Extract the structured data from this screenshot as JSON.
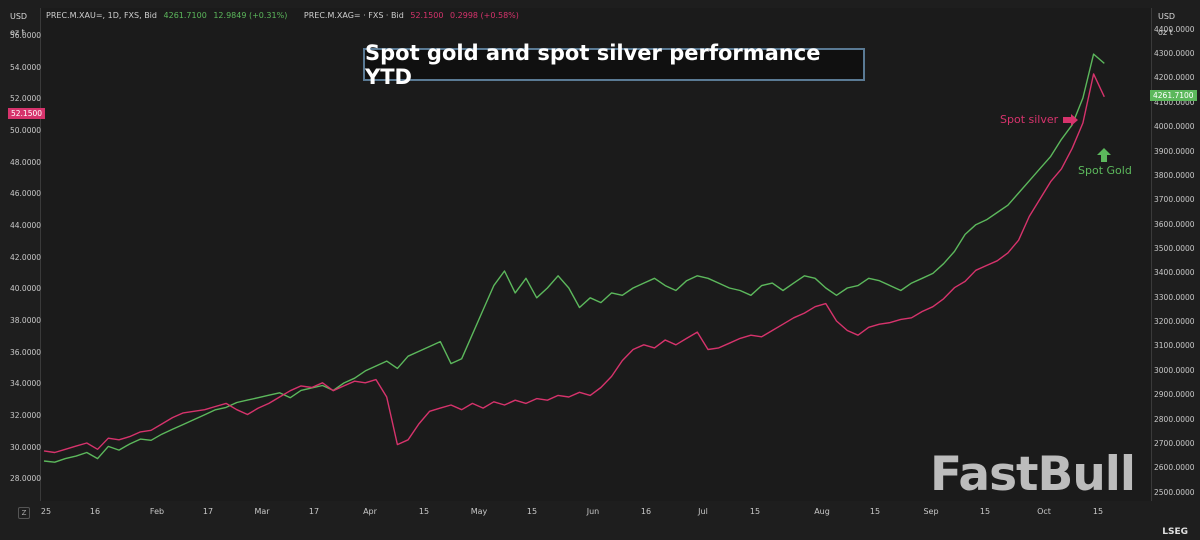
{
  "colors": {
    "gold": "#5cb85c",
    "silver": "#d6336c",
    "title_border": "#5a7a94"
  },
  "info": {
    "gold_ric": "PREC.M.XAU=, 1D, FXS, Bid",
    "gold_value": "4261.7100",
    "gold_change": "12.9849 (+0.31%)",
    "silver_ric": "PREC.M.XAG= · FXS · Bid",
    "silver_value": "52.1500",
    "silver_change": "0.2998 (+0.58%)"
  },
  "left_axis": {
    "unit": "USD",
    "sub": "oz t"
  },
  "right_axis": {
    "unit": "USD",
    "sub": "oz t"
  },
  "badges": {
    "left": "52.1500",
    "right": "4261.7100"
  },
  "annotations": {
    "silver": "Spot silver",
    "gold": "Spot Gold"
  },
  "watermark": "FastBull",
  "source": "LSEG",
  "zoom_icon": "Z",
  "chart_data": {
    "type": "line",
    "title": "Spot gold and spot silver performance YTD",
    "x_ticks": [
      "25",
      "16",
      "Feb",
      "17",
      "Mar",
      "17",
      "Apr",
      "15",
      "May",
      "15",
      "Jun",
      "16",
      "Jul",
      "15",
      "Aug",
      "15",
      "Sep",
      "15",
      "Oct",
      "15"
    ],
    "left_axis_ticks": [
      "56.0000",
      "54.0000",
      "52.0000",
      "50.0000",
      "48.0000",
      "46.0000",
      "44.0000",
      "42.0000",
      "40.0000",
      "38.0000",
      "36.0000",
      "34.0000",
      "32.0000",
      "30.0000",
      "28.0000"
    ],
    "right_axis_ticks": [
      "4400.0000",
      "4300.0000",
      "4200.0000",
      "4100.0000",
      "4000.0000",
      "3900.0000",
      "3800.0000",
      "3700.0000",
      "3600.0000",
      "3500.0000",
      "3400.0000",
      "3300.0000",
      "3200.0000",
      "3100.0000",
      "3000.0000",
      "2900.0000",
      "2800.0000",
      "2700.0000",
      "2600.0000",
      "2500.0000"
    ],
    "left_ylim": [
      26.7,
      57.0
    ],
    "right_ylim": [
      2470,
      4440
    ],
    "x_range": [
      0,
      100
    ],
    "series": [
      {
        "name": "PREC.M.XAU=",
        "axis": "right",
        "x": [
          0,
          1,
          2,
          3,
          4,
          5,
          6,
          7,
          8,
          9,
          10,
          11,
          12,
          13,
          14,
          15,
          16,
          17,
          18,
          19,
          20,
          21,
          22,
          23,
          24,
          25,
          26,
          27,
          28,
          29,
          30,
          31,
          32,
          33,
          34,
          35,
          36,
          37,
          38,
          39,
          40,
          41,
          42,
          43,
          44,
          45,
          46,
          47,
          48,
          49,
          50,
          51,
          52,
          53,
          54,
          55,
          56,
          57,
          58,
          59,
          60,
          61,
          62,
          63,
          64,
          65,
          66,
          67,
          68,
          69,
          70,
          71,
          72,
          73,
          74,
          75,
          76,
          77,
          78,
          79,
          80,
          81,
          82,
          83,
          84,
          85,
          86,
          87,
          88,
          89,
          90,
          91,
          92,
          93,
          94,
          95,
          96,
          97,
          98,
          99
        ],
        "values": [
          2630,
          2625,
          2640,
          2650,
          2665,
          2640,
          2690,
          2675,
          2700,
          2720,
          2715,
          2740,
          2760,
          2780,
          2800,
          2820,
          2840,
          2850,
          2870,
          2880,
          2890,
          2900,
          2910,
          2890,
          2920,
          2930,
          2940,
          2920,
          2950,
          2970,
          3000,
          3020,
          3040,
          3010,
          3060,
          3080,
          3100,
          3120,
          3030,
          3050,
          3150,
          3250,
          3350,
          3410,
          3320,
          3380,
          3300,
          3340,
          3390,
          3340,
          3260,
          3300,
          3280,
          3320,
          3310,
          3340,
          3360,
          3380,
          3350,
          3330,
          3370,
          3390,
          3380,
          3360,
          3340,
          3330,
          3310,
          3350,
          3360,
          3330,
          3360,
          3390,
          3380,
          3340,
          3310,
          3340,
          3350,
          3380,
          3370,
          3350,
          3330,
          3360,
          3380,
          3400,
          3440,
          3490,
          3560,
          3600,
          3620,
          3650,
          3680,
          3730,
          3780,
          3830,
          3880,
          3950,
          4010,
          4120,
          4300,
          4262
        ]
      },
      {
        "name": "PREC.M.XAG=",
        "axis": "left",
        "x": [
          0,
          1,
          2,
          3,
          4,
          5,
          6,
          7,
          8,
          9,
          10,
          11,
          12,
          13,
          14,
          15,
          16,
          17,
          18,
          19,
          20,
          21,
          22,
          23,
          24,
          25,
          26,
          27,
          28,
          29,
          30,
          31,
          32,
          33,
          34,
          35,
          36,
          37,
          38,
          39,
          40,
          41,
          42,
          43,
          44,
          45,
          46,
          47,
          48,
          49,
          50,
          51,
          52,
          53,
          54,
          55,
          56,
          57,
          58,
          59,
          60,
          61,
          62,
          63,
          64,
          65,
          66,
          67,
          68,
          69,
          70,
          71,
          72,
          73,
          74,
          75,
          76,
          77,
          78,
          79,
          80,
          81,
          82,
          83,
          84,
          85,
          86,
          87,
          88,
          89,
          90,
          91,
          92,
          93,
          94,
          95,
          96,
          97,
          98,
          99
        ],
        "values": [
          29.8,
          29.7,
          29.9,
          30.1,
          30.3,
          29.9,
          30.6,
          30.5,
          30.7,
          31.0,
          31.1,
          31.5,
          31.9,
          32.2,
          32.3,
          32.4,
          32.6,
          32.8,
          32.4,
          32.1,
          32.5,
          32.8,
          33.2,
          33.6,
          33.9,
          33.8,
          34.1,
          33.6,
          33.9,
          34.2,
          34.1,
          34.3,
          33.2,
          30.2,
          30.5,
          31.5,
          32.3,
          32.5,
          32.7,
          32.4,
          32.8,
          32.5,
          32.9,
          32.7,
          33.0,
          32.8,
          33.1,
          33.0,
          33.3,
          33.2,
          33.5,
          33.3,
          33.8,
          34.5,
          35.5,
          36.2,
          36.5,
          36.3,
          36.8,
          36.5,
          36.9,
          37.3,
          36.2,
          36.3,
          36.6,
          36.9,
          37.1,
          37.0,
          37.4,
          37.8,
          38.2,
          38.5,
          38.9,
          39.1,
          38.0,
          37.4,
          37.1,
          37.6,
          37.8,
          37.9,
          38.1,
          38.2,
          38.6,
          38.9,
          39.4,
          40.1,
          40.5,
          41.2,
          41.5,
          41.8,
          42.3,
          43.1,
          44.6,
          45.7,
          46.8,
          47.6,
          48.9,
          50.5,
          53.6,
          52.15
        ]
      }
    ]
  }
}
